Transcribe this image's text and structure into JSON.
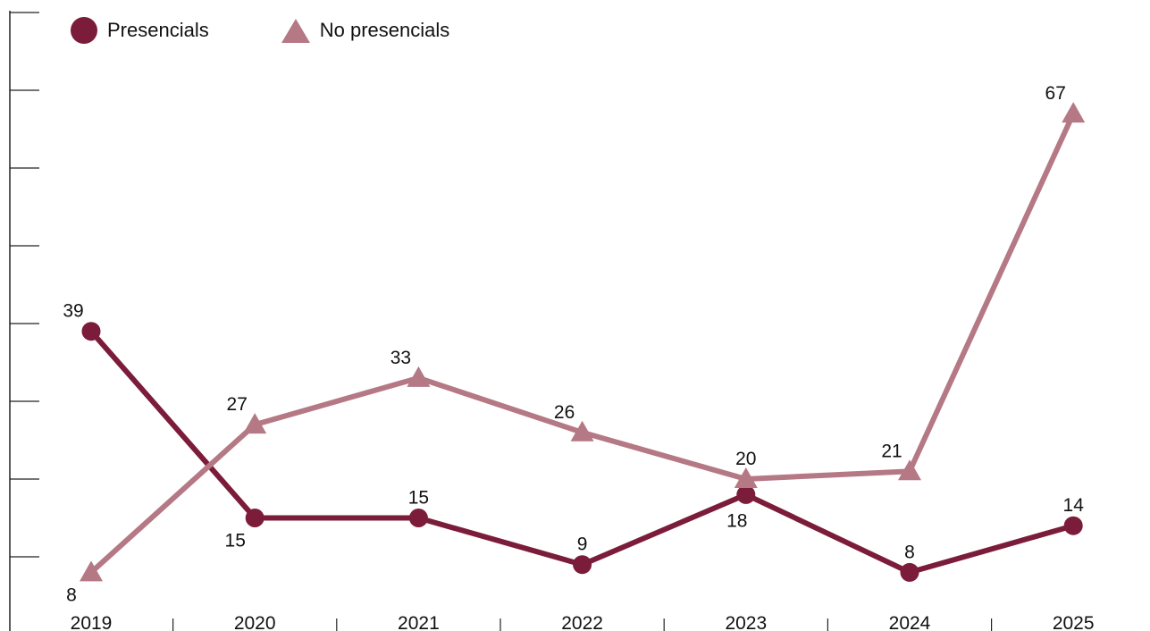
{
  "chart_data": {
    "type": "line",
    "title": "",
    "xlabel": "",
    "ylabel": "",
    "categories": [
      "2019",
      "2020",
      "2021",
      "2022",
      "2023",
      "2024",
      "2025"
    ],
    "ylim": [
      0,
      80
    ],
    "y_gridlines": "ticks every 10 on left axis, no tick labels",
    "legend_position": "top-left",
    "series": [
      {
        "name": "Presencials",
        "marker": "circle",
        "color": "#7b1c3a",
        "values": [
          39,
          15,
          15,
          9,
          18,
          8,
          14
        ]
      },
      {
        "name": "No presencials",
        "marker": "triangle",
        "color": "#b57885",
        "values": [
          8,
          27,
          33,
          26,
          20,
          21,
          67
        ]
      }
    ]
  }
}
